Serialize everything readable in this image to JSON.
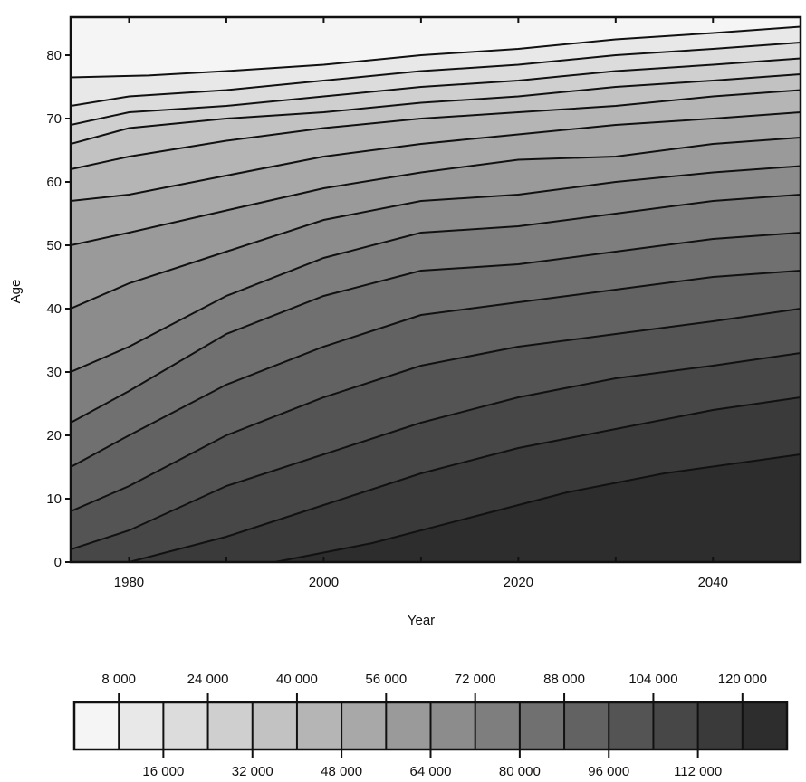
{
  "chart_data": {
    "type": "heatmap",
    "title": "",
    "xlabel": "Year",
    "ylabel": "Age",
    "xlim": [
      1974,
      2049
    ],
    "ylim": [
      0,
      86
    ],
    "x_ticks": [
      "1980",
      "2000",
      "2020",
      "2040"
    ],
    "x_tick_values": [
      1980,
      2000,
      2020,
      2040
    ],
    "y_ticks": [
      "0",
      "10",
      "20",
      "30",
      "40",
      "50",
      "60",
      "70",
      "80"
    ],
    "y_tick_values": [
      0,
      10,
      20,
      30,
      40,
      50,
      60,
      70,
      80
    ],
    "legend": {
      "placement": "bottom",
      "top_labels": [
        "8 000",
        "24 000",
        "40 000",
        "56 000",
        "72 000",
        "88 000",
        "104 000",
        "120 000"
      ],
      "bottom_labels": [
        "16 000",
        "32 000",
        "48 000",
        "64 000",
        "80 000",
        "96 000",
        "112 000"
      ],
      "levels": [
        0,
        8000,
        16000,
        24000,
        32000,
        40000,
        48000,
        56000,
        64000,
        72000,
        80000,
        88000,
        96000,
        104000,
        112000,
        120000,
        128000
      ]
    },
    "contours": [
      {
        "level": 8000,
        "points": [
          [
            1974,
            76.5
          ],
          [
            1982,
            76.8
          ],
          [
            1990,
            77.5
          ],
          [
            2000,
            78.5
          ],
          [
            2010,
            80
          ],
          [
            2020,
            81
          ],
          [
            2030,
            82.5
          ],
          [
            2040,
            83.5
          ],
          [
            2049,
            84.5
          ]
        ]
      },
      {
        "level": 16000,
        "points": [
          [
            1974,
            72
          ],
          [
            1980,
            73.5
          ],
          [
            1990,
            74.5
          ],
          [
            2000,
            76
          ],
          [
            2010,
            77.5
          ],
          [
            2020,
            78.5
          ],
          [
            2030,
            80
          ],
          [
            2040,
            81
          ],
          [
            2049,
            82
          ]
        ]
      },
      {
        "level": 24000,
        "points": [
          [
            1974,
            69
          ],
          [
            1980,
            71
          ],
          [
            1990,
            72
          ],
          [
            2000,
            73.5
          ],
          [
            2010,
            75
          ],
          [
            2020,
            76
          ],
          [
            2030,
            77.5
          ],
          [
            2040,
            78.5
          ],
          [
            2049,
            79.5
          ]
        ]
      },
      {
        "level": 32000,
        "points": [
          [
            1974,
            66
          ],
          [
            1980,
            68.5
          ],
          [
            1990,
            70
          ],
          [
            2000,
            71
          ],
          [
            2010,
            72.5
          ],
          [
            2020,
            73.5
          ],
          [
            2030,
            75
          ],
          [
            2040,
            76
          ],
          [
            2049,
            77
          ]
        ]
      },
      {
        "level": 40000,
        "points": [
          [
            1974,
            62
          ],
          [
            1980,
            64
          ],
          [
            1990,
            66.5
          ],
          [
            2000,
            68.5
          ],
          [
            2010,
            70
          ],
          [
            2020,
            71
          ],
          [
            2030,
            72
          ],
          [
            2040,
            73.5
          ],
          [
            2049,
            74.5
          ]
        ]
      },
      {
        "level": 48000,
        "points": [
          [
            1974,
            57
          ],
          [
            1980,
            58
          ],
          [
            1990,
            61
          ],
          [
            2000,
            64
          ],
          [
            2010,
            66
          ],
          [
            2020,
            67.5
          ],
          [
            2030,
            69
          ],
          [
            2040,
            70
          ],
          [
            2049,
            71
          ]
        ]
      },
      {
        "level": 56000,
        "points": [
          [
            1974,
            50
          ],
          [
            1980,
            52
          ],
          [
            1990,
            55.5
          ],
          [
            2000,
            59
          ],
          [
            2010,
            61.5
          ],
          [
            2020,
            63.5
          ],
          [
            2030,
            64
          ],
          [
            2040,
            66
          ],
          [
            2049,
            67
          ]
        ]
      },
      {
        "level": 64000,
        "points": [
          [
            1974,
            40
          ],
          [
            1980,
            44
          ],
          [
            1990,
            49
          ],
          [
            2000,
            54
          ],
          [
            2010,
            57
          ],
          [
            2020,
            58
          ],
          [
            2030,
            60
          ],
          [
            2040,
            61.5
          ],
          [
            2049,
            62.5
          ]
        ]
      },
      {
        "level": 72000,
        "points": [
          [
            1974,
            30
          ],
          [
            1980,
            34
          ],
          [
            1990,
            42
          ],
          [
            2000,
            48
          ],
          [
            2010,
            52
          ],
          [
            2020,
            53
          ],
          [
            2030,
            55
          ],
          [
            2040,
            57
          ],
          [
            2049,
            58
          ]
        ]
      },
      {
        "level": 80000,
        "points": [
          [
            1974,
            22
          ],
          [
            1980,
            27
          ],
          [
            1990,
            36
          ],
          [
            2000,
            42
          ],
          [
            2010,
            46
          ],
          [
            2020,
            47
          ],
          [
            2030,
            49
          ],
          [
            2040,
            51
          ],
          [
            2049,
            52
          ]
        ]
      },
      {
        "level": 88000,
        "points": [
          [
            1974,
            15
          ],
          [
            1980,
            20
          ],
          [
            1990,
            28
          ],
          [
            2000,
            34
          ],
          [
            2010,
            39
          ],
          [
            2020,
            41
          ],
          [
            2030,
            43
          ],
          [
            2040,
            45
          ],
          [
            2049,
            46
          ]
        ]
      },
      {
        "level": 96000,
        "points": [
          [
            1974,
            8
          ],
          [
            1980,
            12
          ],
          [
            1990,
            20
          ],
          [
            2000,
            26
          ],
          [
            2010,
            31
          ],
          [
            2020,
            34
          ],
          [
            2030,
            36
          ],
          [
            2040,
            38
          ],
          [
            2049,
            40
          ]
        ]
      },
      {
        "level": 104000,
        "points": [
          [
            1974,
            2
          ],
          [
            1980,
            5
          ],
          [
            1990,
            12
          ],
          [
            2000,
            17
          ],
          [
            2010,
            22
          ],
          [
            2020,
            26
          ],
          [
            2030,
            29
          ],
          [
            2040,
            31
          ],
          [
            2049,
            33
          ]
        ]
      },
      {
        "level": 112000,
        "points": [
          [
            1980,
            0
          ],
          [
            1990,
            4
          ],
          [
            2000,
            9
          ],
          [
            2010,
            14
          ],
          [
            2020,
            18
          ],
          [
            2030,
            21
          ],
          [
            2040,
            24
          ],
          [
            2049,
            26
          ]
        ]
      },
      {
        "level": 120000,
        "points": [
          [
            1995,
            0
          ],
          [
            2005,
            3
          ],
          [
            2015,
            7
          ],
          [
            2025,
            11
          ],
          [
            2035,
            14
          ],
          [
            2049,
            17
          ]
        ]
      }
    ]
  },
  "colors": {
    "background": "#ffffff",
    "ink": "#111111",
    "levels": [
      "#f5f5f5",
      "#e8e8e8",
      "#dcdcdc",
      "#cfcfcf",
      "#c2c2c2",
      "#b5b5b5",
      "#a8a8a8",
      "#9a9a9a",
      "#8c8c8c",
      "#7e7e7e",
      "#707070",
      "#626262",
      "#545454",
      "#474747",
      "#3a3a3a",
      "#2d2d2d"
    ]
  }
}
